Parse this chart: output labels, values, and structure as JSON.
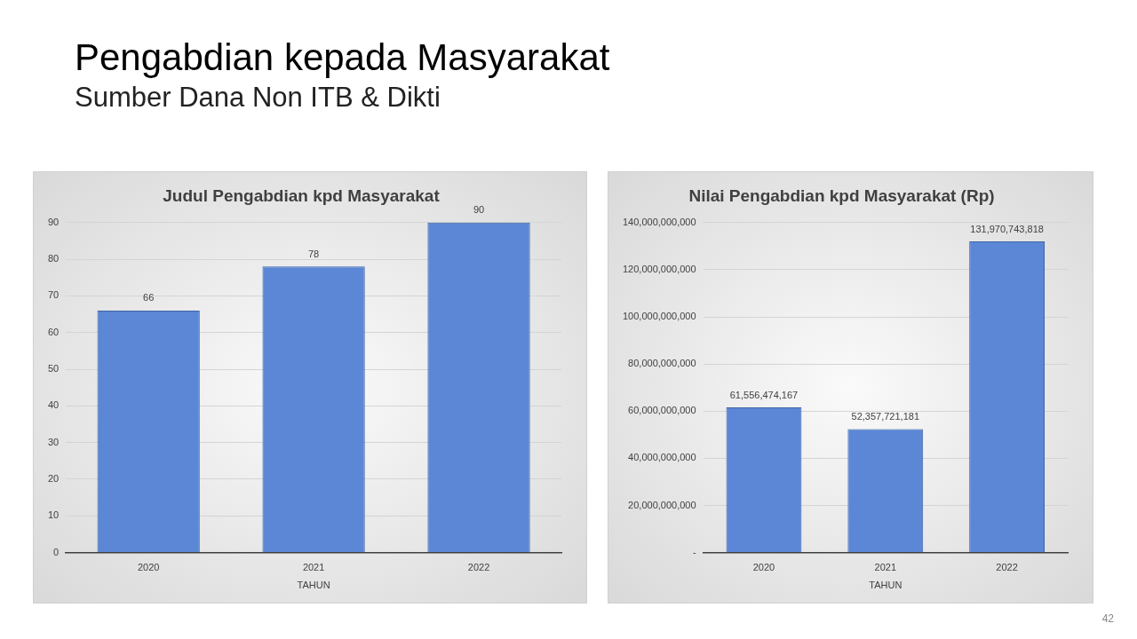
{
  "chart_data": [
    {
      "type": "bar",
      "title": "Judul Pengabdian kpd Masyarakat",
      "xlabel": "TAHUN",
      "categories": [
        "2020",
        "2021",
        "2022"
      ],
      "values": [
        66,
        78,
        90
      ],
      "color": "#5b87d6",
      "ylim": [
        0,
        90
      ],
      "yticks": [
        0,
        10,
        20,
        30,
        40,
        50,
        60,
        70,
        80,
        90
      ],
      "grid": "y",
      "data_labels": true,
      "legend": false,
      "annotations": [
        "Pengabdian kepada Masyarakat",
        "Sumber Dana Non ITB & Dikti"
      ]
    },
    {
      "type": "bar",
      "title": "Nilai Pengabdian kpd Masyarakat (Rp)",
      "xlabel": "TAHUN",
      "categories": [
        "2020",
        "2021",
        "2022"
      ],
      "values": [
        61556474167,
        52357721181,
        131970743818
      ],
      "value_labels": [
        "61,556,474,167",
        "52,357,721,181",
        "131,970,743,818"
      ],
      "color": "#5b87d6",
      "ylim": [
        0,
        140000000000
      ],
      "yticks": [
        {
          "value": 0,
          "label": "-"
        },
        {
          "value": 20000000000,
          "label": "20,000,000,000"
        },
        {
          "value": 40000000000,
          "label": "40,000,000,000"
        },
        {
          "value": 60000000000,
          "label": "60,000,000,000"
        },
        {
          "value": 80000000000,
          "label": "80,000,000,000"
        },
        {
          "value": 100000000000,
          "label": "100,000,000,000"
        },
        {
          "value": 120000000000,
          "label": "120,000,000,000"
        },
        {
          "value": 140000000000,
          "label": "140,000,000,000"
        }
      ],
      "grid": "y",
      "legend": false,
      "annotations": [
        "42"
      ]
    }
  ]
}
